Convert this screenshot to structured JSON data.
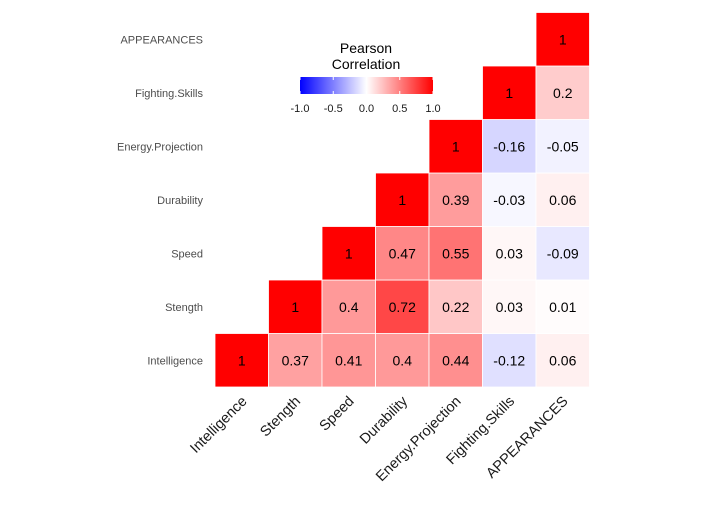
{
  "chart_data": {
    "type": "heatmap",
    "title": "",
    "variables": [
      "Intelligence",
      "Stength",
      "Speed",
      "Durability",
      "Energy.Projection",
      "Fighting.Skills",
      "APPEARANCES"
    ],
    "x_tick_labels": [
      "Intelligence",
      "Stength",
      "Speed",
      "Durability",
      "Energy.Projection",
      "Fighting.Skills",
      "APPEARANCES"
    ],
    "y_tick_labels": [
      "Intelligence",
      "Stength",
      "Speed",
      "Durability",
      "Energy.Projection",
      "Fighting.Skills",
      "APPEARANCES"
    ],
    "layout": "upper-triangle",
    "cells": [
      {
        "x": "Intelligence",
        "y": "Intelligence",
        "value": 1,
        "label": "1"
      },
      {
        "x": "Stength",
        "y": "Intelligence",
        "value": 0.37,
        "label": "0.37"
      },
      {
        "x": "Speed",
        "y": "Intelligence",
        "value": 0.41,
        "label": "0.41"
      },
      {
        "x": "Durability",
        "y": "Intelligence",
        "value": 0.4,
        "label": "0.4"
      },
      {
        "x": "Energy.Projection",
        "y": "Intelligence",
        "value": 0.44,
        "label": "0.44"
      },
      {
        "x": "Fighting.Skills",
        "y": "Intelligence",
        "value": -0.12,
        "label": "-0.12"
      },
      {
        "x": "APPEARANCES",
        "y": "Intelligence",
        "value": 0.06,
        "label": "0.06"
      },
      {
        "x": "Stength",
        "y": "Stength",
        "value": 1,
        "label": "1"
      },
      {
        "x": "Speed",
        "y": "Stength",
        "value": 0.4,
        "label": "0.4"
      },
      {
        "x": "Durability",
        "y": "Stength",
        "value": 0.72,
        "label": "0.72"
      },
      {
        "x": "Energy.Projection",
        "y": "Stength",
        "value": 0.22,
        "label": "0.22"
      },
      {
        "x": "Fighting.Skills",
        "y": "Stength",
        "value": 0.03,
        "label": "0.03"
      },
      {
        "x": "APPEARANCES",
        "y": "Stength",
        "value": 0.01,
        "label": "0.01"
      },
      {
        "x": "Speed",
        "y": "Speed",
        "value": 1,
        "label": "1"
      },
      {
        "x": "Durability",
        "y": "Speed",
        "value": 0.47,
        "label": "0.47"
      },
      {
        "x": "Energy.Projection",
        "y": "Speed",
        "value": 0.55,
        "label": "0.55"
      },
      {
        "x": "Fighting.Skills",
        "y": "Speed",
        "value": 0.03,
        "label": "0.03"
      },
      {
        "x": "APPEARANCES",
        "y": "Speed",
        "value": -0.09,
        "label": "-0.09"
      },
      {
        "x": "Durability",
        "y": "Durability",
        "value": 1,
        "label": "1"
      },
      {
        "x": "Energy.Projection",
        "y": "Durability",
        "value": 0.39,
        "label": "0.39"
      },
      {
        "x": "Fighting.Skills",
        "y": "Durability",
        "value": -0.03,
        "label": "-0.03"
      },
      {
        "x": "APPEARANCES",
        "y": "Durability",
        "value": 0.06,
        "label": "0.06"
      },
      {
        "x": "Energy.Projection",
        "y": "Energy.Projection",
        "value": 1,
        "label": "1"
      },
      {
        "x": "Fighting.Skills",
        "y": "Energy.Projection",
        "value": -0.16,
        "label": "-0.16"
      },
      {
        "x": "APPEARANCES",
        "y": "Energy.Projection",
        "value": -0.05,
        "label": "-0.05"
      },
      {
        "x": "Fighting.Skills",
        "y": "Fighting.Skills",
        "value": 1,
        "label": "1"
      },
      {
        "x": "APPEARANCES",
        "y": "Fighting.Skills",
        "value": 0.2,
        "label": "0.2"
      },
      {
        "x": "APPEARANCES",
        "y": "APPEARANCES",
        "value": 1,
        "label": "1"
      }
    ],
    "legend": {
      "title_lines": [
        "Pearson",
        "Correlation"
      ],
      "range": [
        -1,
        1
      ],
      "ticks": [
        -1.0,
        -0.5,
        0.0,
        0.5,
        1.0
      ],
      "tick_labels": [
        "-1.0",
        "-0.5",
        "0.0",
        "0.5",
        "1.0"
      ],
      "placement": "top-center",
      "orientation": "horizontal"
    },
    "colors": {
      "low": "#0000ff",
      "mid": "#ffffff",
      "high": "#ff0000"
    },
    "grid": false
  }
}
